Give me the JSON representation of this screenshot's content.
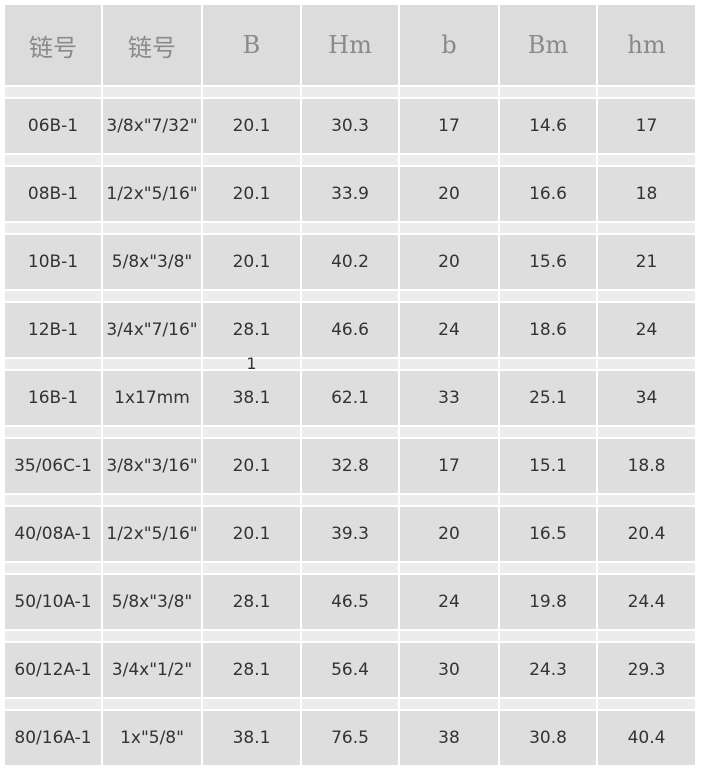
{
  "headers": [
    "链号",
    "链号",
    "B",
    "Hm",
    "b",
    "Bm",
    "hm"
  ],
  "spacer_notes": [
    "",
    "",
    "",
    "",
    "1",
    "",
    "",
    "",
    "",
    ""
  ],
  "rows": [
    [
      "06B-1",
      "3/8x\"7/32\"",
      "20.1",
      "30.3",
      "17",
      "14.6",
      "17"
    ],
    [
      "08B-1",
      "1/2x\"5/16\"",
      "20.1",
      "33.9",
      "20",
      "16.6",
      "18"
    ],
    [
      "10B-1",
      "5/8x\"3/8\"",
      "20.1",
      "40.2",
      "20",
      "15.6",
      "21"
    ],
    [
      "12B-1",
      "3/4x\"7/16\"",
      "28.1",
      "46.6",
      "24",
      "18.6",
      "24"
    ],
    [
      "16B-1",
      "1x17mm",
      "38.1",
      "62.1",
      "33",
      "25.1",
      "34"
    ],
    [
      "35/06C-1",
      "3/8x\"3/16\"",
      "20.1",
      "32.8",
      "17",
      "15.1",
      "18.8"
    ],
    [
      "40/08A-1",
      "1/2x\"5/16\"",
      "20.1",
      "39.3",
      "20",
      "16.5",
      "20.4"
    ],
    [
      "50/10A-1",
      "5/8x\"3/8\"",
      "28.1",
      "46.5",
      "24",
      "19.8",
      "24.4"
    ],
    [
      "60/12A-1",
      "3/4x\"1/2\"",
      "28.1",
      "56.4",
      "30",
      "24.3",
      "29.3"
    ],
    [
      "80/16A-1",
      "1x\"5/8\"",
      "38.1",
      "76.5",
      "38",
      "30.8",
      "40.4"
    ]
  ]
}
